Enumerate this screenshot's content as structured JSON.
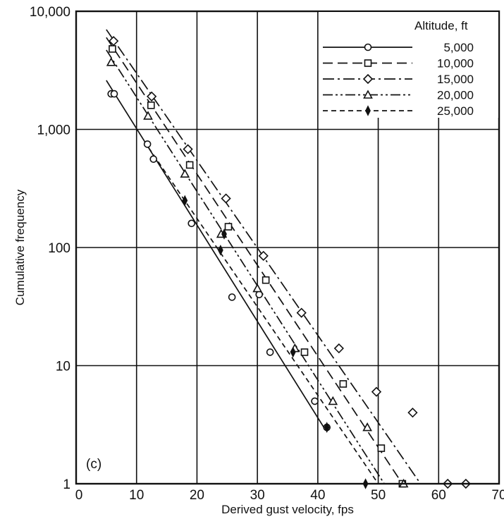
{
  "chart_data": {
    "type": "scatter",
    "xlabel": "Derived gust velocity, fps",
    "ylabel": "Cumulative frequency",
    "xlim": [
      0,
      70
    ],
    "ylim": [
      1,
      10000
    ],
    "yscale": "log",
    "grid": true,
    "panel_label": "(c)",
    "x_ticks": [
      {
        "value": 0,
        "label": "0"
      },
      {
        "value": 10,
        "label": "10"
      },
      {
        "value": 20,
        "label": "20"
      },
      {
        "value": 30,
        "label": "30"
      },
      {
        "value": 40,
        "label": "40"
      },
      {
        "value": 50,
        "label": "50"
      },
      {
        "value": 60,
        "label": "60"
      },
      {
        "value": 70,
        "label": "70"
      }
    ],
    "y_ticks": [
      {
        "value": 1,
        "label": "1"
      },
      {
        "value": 10,
        "label": "10"
      },
      {
        "value": 100,
        "label": "100"
      },
      {
        "value": 1000,
        "label": "1,000"
      },
      {
        "value": 10000,
        "label": "10,000"
      }
    ],
    "legend": {
      "title": "Altitude, ft",
      "position": "top-right"
    },
    "series": [
      {
        "name": "5,000",
        "marker": "circle",
        "dash": "solid",
        "points": [
          [
            5.8,
            2000
          ],
          [
            6.3,
            2000
          ],
          [
            11.8,
            750
          ],
          [
            12.8,
            560
          ],
          [
            19.1,
            160
          ],
          [
            25.8,
            38
          ],
          [
            30.3,
            40
          ],
          [
            32.1,
            13
          ],
          [
            39.5,
            5
          ],
          [
            41.5,
            3
          ]
        ],
        "fit_line": [
          [
            5,
            2600
          ],
          [
            41,
            3
          ]
        ]
      },
      {
        "name": "10,000",
        "marker": "square",
        "dash": "long-dash",
        "points": [
          [
            6.0,
            4800
          ],
          [
            12.4,
            1600
          ],
          [
            18.8,
            500
          ],
          [
            25.2,
            150
          ],
          [
            31.4,
            53
          ],
          [
            37.8,
            13
          ],
          [
            44.2,
            7
          ],
          [
            50.5,
            2
          ],
          [
            54.0,
            1
          ]
        ],
        "fit_line": [
          [
            5,
            6000
          ],
          [
            54,
            1
          ]
        ]
      },
      {
        "name": "15,000",
        "marker": "diamond",
        "dash": "dash-dot",
        "points": [
          [
            6.2,
            5600
          ],
          [
            12.5,
            1900
          ],
          [
            18.5,
            680
          ],
          [
            24.8,
            260
          ],
          [
            31.0,
            85
          ],
          [
            37.3,
            28
          ],
          [
            43.5,
            14
          ],
          [
            49.7,
            6
          ],
          [
            55.7,
            4
          ],
          [
            61.5,
            1
          ],
          [
            64.5,
            1
          ]
        ],
        "fit_line": [
          [
            5,
            7000
          ],
          [
            57,
            1
          ]
        ]
      },
      {
        "name": "20,000",
        "marker": "triangle",
        "dash": "dash-dot-dot",
        "points": [
          [
            5.8,
            3700
          ],
          [
            11.9,
            1300
          ],
          [
            18.0,
            420
          ],
          [
            24.0,
            130
          ],
          [
            30.0,
            45
          ],
          [
            36.2,
            14
          ],
          [
            42.5,
            5
          ],
          [
            48.2,
            3
          ],
          [
            54.2,
            1
          ]
        ],
        "fit_line": [
          [
            5,
            4700
          ],
          [
            51,
            1
          ]
        ]
      },
      {
        "name": "25,000",
        "marker": "thin-diamond",
        "dash": "short-dash",
        "points": [
          [
            18.0,
            250
          ],
          [
            23.9,
            95
          ],
          [
            24.5,
            130
          ],
          [
            35.9,
            13
          ],
          [
            41.5,
            3
          ],
          [
            47.9,
            1
          ]
        ],
        "fit_line": [
          [
            12,
            700
          ],
          [
            50,
            1
          ]
        ]
      }
    ]
  }
}
